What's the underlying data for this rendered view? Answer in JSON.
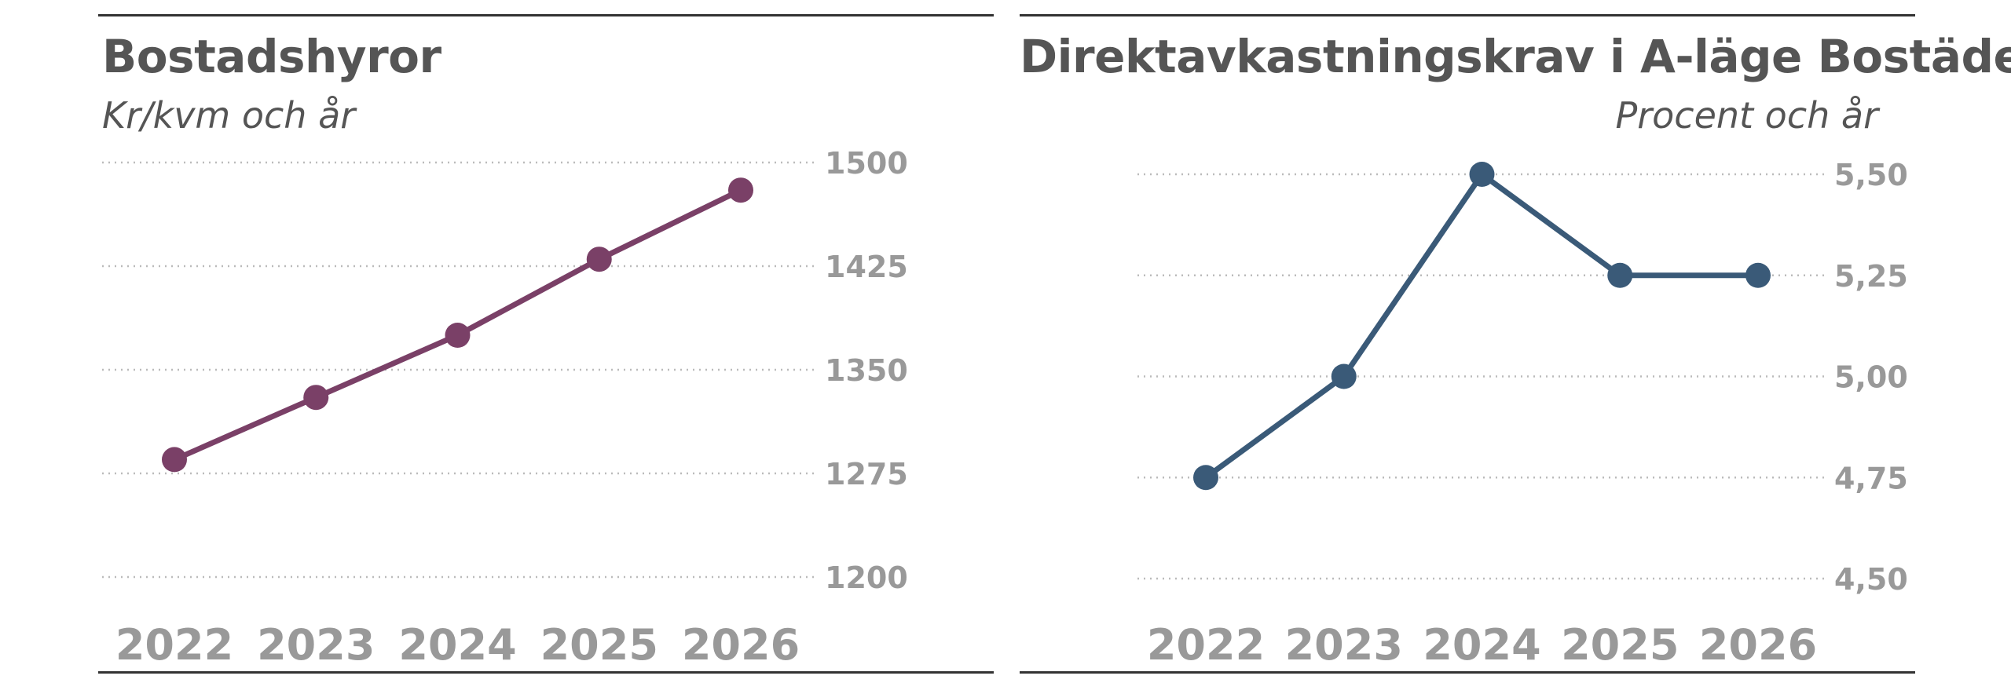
{
  "chart_data": [
    {
      "type": "line",
      "title": "Bostadshyror",
      "subtitle": "Kr/kvm och år",
      "x": [
        "2022",
        "2023",
        "2024",
        "2025",
        "2026"
      ],
      "series": [
        {
          "values": [
            1285,
            1330,
            1375,
            1430,
            1480
          ],
          "color": "#7a4067"
        }
      ],
      "yticks": [
        "1500",
        "1425",
        "1350",
        "1275",
        "1200"
      ],
      "ylim": [
        1200,
        1500
      ],
      "grid": true,
      "grid_style": "dotted",
      "y_axis_side": "right"
    },
    {
      "type": "line",
      "title": "Direktavkastningskrav i A-läge Bostäder",
      "subtitle": "Procent och år",
      "x": [
        "2022",
        "2023",
        "2024",
        "2025",
        "2026"
      ],
      "series": [
        {
          "values": [
            4.75,
            5.0,
            5.5,
            5.25,
            5.25
          ],
          "color": "#3a5a78"
        }
      ],
      "yticks": [
        "5,50",
        "5,25",
        "5,00",
        "4,75",
        "4,50"
      ],
      "ylim": [
        4.5,
        5.5
      ],
      "grid": true,
      "grid_style": "dotted",
      "y_axis_side": "right"
    }
  ]
}
